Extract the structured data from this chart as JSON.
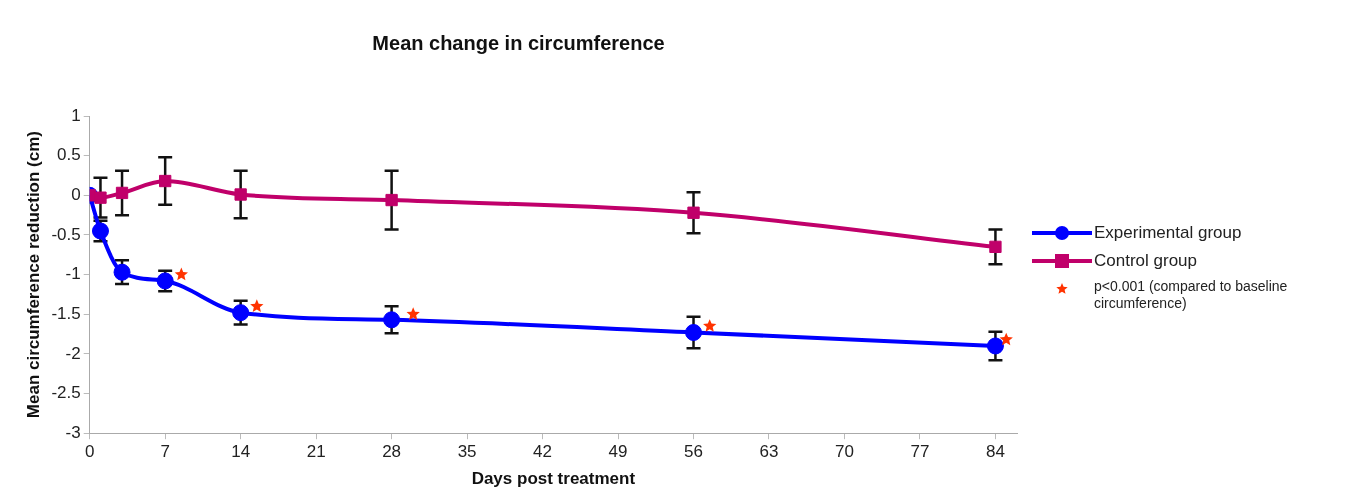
{
  "chart_data": {
    "type": "line",
    "title": "Mean change in circumference",
    "xlabel": "Days post treatment",
    "ylabel": "Mean circumference reduction (cm)",
    "xlim": [
      0,
      86
    ],
    "xticks": [
      0,
      7,
      14,
      21,
      28,
      35,
      42,
      49,
      56,
      63,
      70,
      77,
      84
    ],
    "ylim": [
      -3,
      1
    ],
    "yticks": [
      -3,
      -2.5,
      -2,
      -1.5,
      -1,
      -0.5,
      0,
      0.5,
      1
    ],
    "grid": false,
    "legend": "right",
    "line_style": "solid",
    "series": [
      {
        "name": "Experimental group",
        "marker": "circle",
        "color": "#0000ff",
        "x": [
          0,
          1,
          3,
          7,
          14,
          28,
          56,
          84
        ],
        "values": [
          0,
          -0.45,
          -0.97,
          -1.08,
          -1.48,
          -1.57,
          -1.73,
          -1.9
        ],
        "errors": [
          null,
          0.13,
          0.15,
          0.13,
          0.15,
          0.17,
          0.2,
          0.18
        ]
      },
      {
        "name": "Control group",
        "marker": "square",
        "color": "#c0006a",
        "x": [
          0,
          1,
          3,
          7,
          14,
          28,
          56,
          84
        ],
        "values": [
          0,
          -0.03,
          0.03,
          0.18,
          0.01,
          -0.06,
          -0.22,
          -0.65
        ],
        "errors": [
          null,
          0.25,
          0.28,
          0.3,
          0.3,
          0.37,
          0.26,
          0.22
        ]
      },
      {
        "name": "p<0.001 (compared to baseline circumference)",
        "type": "scatter",
        "marker": "star",
        "color": "#ff3300",
        "x": [
          8.5,
          15.5,
          30,
          57.5,
          85
        ],
        "values": [
          -1.0,
          -1.4,
          -1.5,
          -1.65,
          -1.82
        ]
      }
    ]
  }
}
